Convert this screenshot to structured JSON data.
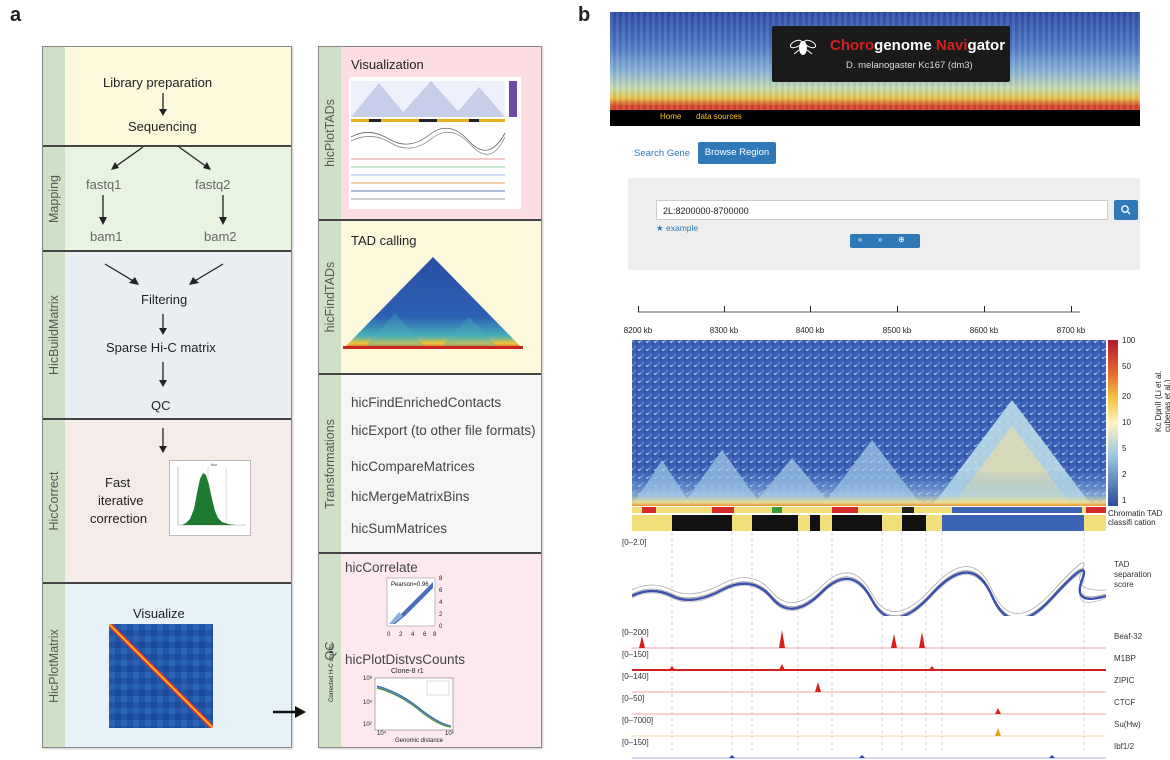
{
  "panel_a": {
    "letter": "a",
    "stages": {
      "library": {
        "line1": "Library preparation",
        "line2": "Sequencing"
      },
      "mapping": {
        "label": "Mapping",
        "fastq1": "fastq1",
        "fastq2": "fastq2",
        "bam1": "bam1",
        "bam2": "bam2"
      },
      "build": {
        "label": "HicBuildMatrix",
        "filtering": "Filtering",
        "sparse": "Sparse Hi-C matrix",
        "qc": "QC"
      },
      "correct": {
        "label": "HicCorrect",
        "line1": "Fast",
        "line2": "iterative",
        "line3": "correction"
      },
      "plotmatrix": {
        "label": "HicPlotMatrix",
        "title": "Visualize"
      }
    },
    "right": {
      "viz": {
        "label": "hicPlotTADs",
        "title": "Visualization"
      },
      "tad": {
        "label": "hicFindTADs",
        "title": "TAD calling"
      },
      "trans": {
        "label": "Transformations",
        "items": [
          "hicFindEnrichedContacts",
          "hicExport (to other file formats)",
          "hicCompareMatrices",
          "hicMergeMatrixBins",
          "hicSumMatrices"
        ]
      },
      "qc": {
        "label": "QC",
        "correlate": "hicCorrelate",
        "pearson": "Pearson=0.96",
        "scatter_ticks": [
          "8",
          "6",
          "4",
          "2",
          "0"
        ],
        "scatter_xticks": [
          "0",
          "2",
          "4",
          "6",
          "8"
        ],
        "distvs": "hicPlotDistvsCounts",
        "dist_title": "Clone-8 r1",
        "dist_ylabel": "Corrected H-C counts",
        "dist_xlabel": "Genomic distance",
        "dist_yticks": [
          "10⁸",
          "10⁵",
          "10²"
        ],
        "dist_xticks": [
          "10⁴",
          "10⁶"
        ]
      }
    }
  },
  "panel_b": {
    "letter": "b",
    "site_title_a": "Choro",
    "site_title_b": "genome ",
    "site_title_c": "Navi",
    "site_title_d": "gator",
    "subtitle": "D. melanogaster Kc167 (dm3)",
    "nav": [
      "Home",
      "data sources"
    ],
    "tabs": {
      "search": "Search Gene",
      "browse": "Browse Region"
    },
    "region_value": "2L:8200000-8700000",
    "example": "example",
    "axis_kb": [
      "8200 kb",
      "8300 kb",
      "8400 kb",
      "8500 kb",
      "8600 kb",
      "8700 kb"
    ],
    "colorbar_ticks": [
      "100",
      "50",
      "20",
      "10",
      "5",
      "2",
      "1"
    ],
    "colorbar_label": "Kc DpnII (Li et al. cubenas et al.)",
    "chromatin_label": "Chromatin TAD classifi cation",
    "tad_range": "[0–2.0]",
    "tad_label": "TAD separation score",
    "tracks": [
      {
        "range": "[0–200]",
        "name": "Beaf-32"
      },
      {
        "range": "[0–150]",
        "name": "M1BP"
      },
      {
        "range": "[0–140]",
        "name": "ZIPIC"
      },
      {
        "range": "[0–50]",
        "name": "CTCF"
      },
      {
        "range": "[0–7000]",
        "name": "Su(Hw)"
      },
      {
        "range": "[0–150]",
        "name": "Ibf1/2"
      }
    ],
    "colors": {
      "header_bg": "#1a1a1a",
      "accent_red": "#d32020",
      "nav_yellow": "#f5c518",
      "button_blue": "#2f79b9"
    }
  }
}
